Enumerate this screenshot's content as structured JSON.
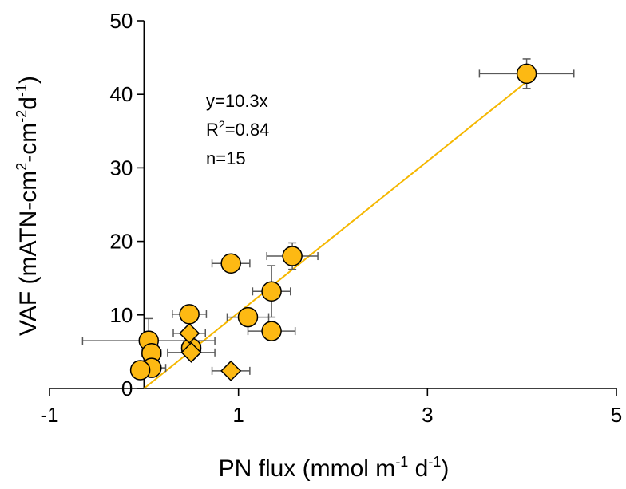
{
  "chart_data": {
    "type": "scatter",
    "xlim": [
      -1,
      5
    ],
    "ylim": [
      0,
      50
    ],
    "x_ticks": [
      -1,
      1,
      3,
      5
    ],
    "y_ticks": [
      0,
      10,
      20,
      30,
      40,
      50
    ],
    "grid": false,
    "xlabel": {
      "main": "PN flux (mmol m",
      "sup1": "-1",
      "mid": " d",
      "sup2": "-1",
      "end": ")"
    },
    "ylabel": {
      "p1": "VAF (mATN-cm",
      "s1": "2",
      "p2": "-cm",
      "s2": "-2",
      "p3": "d",
      "s3": "-1",
      "p4": ")"
    },
    "annotation": {
      "equation": "y=10.3x",
      "r2_prefix": "R",
      "r2_sup": "2",
      "r2_value": "=0.84",
      "n": "n=15"
    },
    "fit": {
      "slope": 10.3,
      "x_range": [
        0,
        4.05
      ],
      "color": "#F5B700"
    },
    "marker_color": "#FDB913",
    "errorbar_color": "#595959",
    "series": [
      {
        "marker": "circle",
        "points": [
          {
            "x": 4.05,
            "y": 42.8,
            "xerr": 0.5,
            "yerr": 2.0
          },
          {
            "x": 1.57,
            "y": 18.0,
            "xerr": 0.27,
            "yerr": 1.8
          },
          {
            "x": 0.92,
            "y": 17.0,
            "xerr": 0.2,
            "yerr": 0
          },
          {
            "x": 1.35,
            "y": 13.2,
            "xerr": 0.2,
            "yerr": 3.5
          },
          {
            "x": 0.48,
            "y": 10.1,
            "xerr": 0.18,
            "yerr": 1.2
          },
          {
            "x": 1.1,
            "y": 9.7,
            "xerr": 0.22,
            "yerr": 0
          },
          {
            "x": 1.35,
            "y": 7.8,
            "xerr": 0.25,
            "yerr": 0
          },
          {
            "x": 0.05,
            "y": 6.5,
            "xerr": 0.7,
            "yerr": 3.0
          },
          {
            "x": 0.08,
            "y": 4.8,
            "xerr": 0.1,
            "yerr": 1.5
          },
          {
            "x": 0.5,
            "y": 5.5,
            "xerr": 0.1,
            "yerr": 0.6
          },
          {
            "x": 0.08,
            "y": 2.8,
            "xerr": 0.15,
            "yerr": 0.5
          },
          {
            "x": -0.04,
            "y": 2.5,
            "xerr": 0.08,
            "yerr": 0
          }
        ]
      },
      {
        "marker": "diamond",
        "points": [
          {
            "x": 0.48,
            "y": 7.5,
            "xerr": 0.17,
            "yerr": 0
          },
          {
            "x": 0.5,
            "y": 4.9,
            "xerr": 0.25,
            "yerr": 0
          },
          {
            "x": 0.92,
            "y": 2.4,
            "xerr": 0.2,
            "yerr": 0
          }
        ]
      }
    ]
  }
}
